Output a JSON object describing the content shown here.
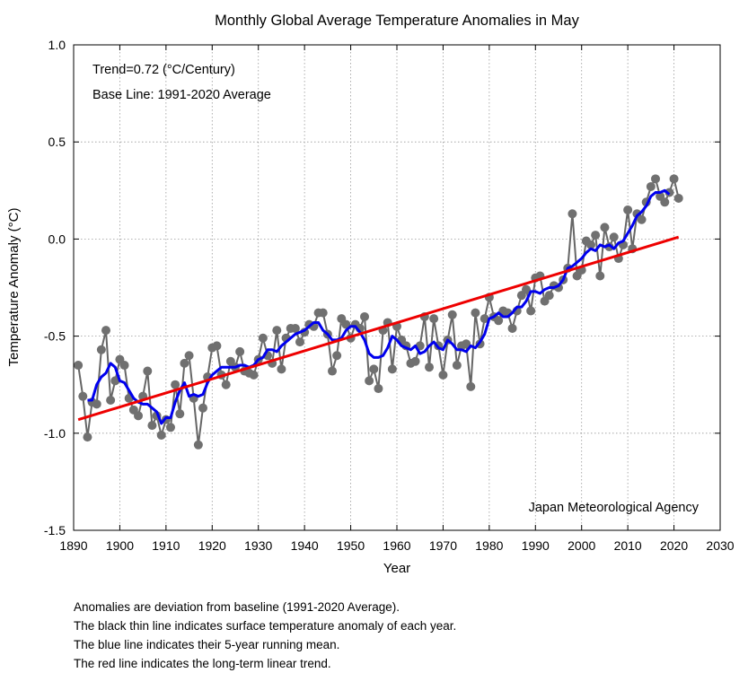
{
  "chart_data": {
    "type": "line",
    "title": "Monthly Global Average Temperature Anomalies in May",
    "xlabel": "Year",
    "ylabel": "Temperature Anomaly (°C)",
    "xlim": [
      1890,
      2030
    ],
    "ylim": [
      -1.5,
      1.0
    ],
    "xticks": [
      "1890",
      "1900",
      "1910",
      "1920",
      "1930",
      "1940",
      "1950",
      "1960",
      "1970",
      "1980",
      "1990",
      "2000",
      "2010",
      "2020",
      "2030"
    ],
    "yticks": [
      "-1.5",
      "-1.0",
      "-0.5",
      "0.0",
      "0.5",
      "1.0"
    ],
    "annotations": {
      "trend": "Trend=0.72 (°C/Century)",
      "baseline": "Base Line: 1991-2020 Average",
      "source": "Japan Meteorological Agency"
    },
    "grid": true,
    "colors": {
      "annual": "#666666",
      "marker": "#707070",
      "running": "#0000ee",
      "trend": "#ee0000",
      "grid": "#999999"
    },
    "series": [
      {
        "name": "annual",
        "x": [
          1891,
          1892,
          1893,
          1894,
          1895,
          1896,
          1897,
          1898,
          1899,
          1900,
          1901,
          1902,
          1903,
          1904,
          1905,
          1906,
          1907,
          1908,
          1909,
          1910,
          1911,
          1912,
          1913,
          1914,
          1915,
          1916,
          1917,
          1918,
          1919,
          1920,
          1921,
          1922,
          1923,
          1924,
          1925,
          1926,
          1927,
          1928,
          1929,
          1930,
          1931,
          1932,
          1933,
          1934,
          1935,
          1936,
          1937,
          1938,
          1939,
          1940,
          1941,
          1942,
          1943,
          1944,
          1945,
          1946,
          1947,
          1948,
          1949,
          1950,
          1951,
          1952,
          1953,
          1954,
          1955,
          1956,
          1957,
          1958,
          1959,
          1960,
          1961,
          1962,
          1963,
          1964,
          1965,
          1966,
          1967,
          1968,
          1969,
          1970,
          1971,
          1972,
          1973,
          1974,
          1975,
          1976,
          1977,
          1978,
          1979,
          1980,
          1981,
          1982,
          1983,
          1984,
          1985,
          1986,
          1987,
          1988,
          1989,
          1990,
          1991,
          1992,
          1993,
          1994,
          1995,
          1996,
          1997,
          1998,
          1999,
          2000,
          2001,
          2002,
          2003,
          2004,
          2005,
          2006,
          2007,
          2008,
          2009,
          2010,
          2011,
          2012,
          2013,
          2014,
          2015,
          2016,
          2017,
          2018,
          2019,
          2020,
          2021
        ],
        "values": [
          -0.65,
          -0.81,
          -1.02,
          -0.84,
          -0.85,
          -0.57,
          -0.47,
          -0.83,
          -0.73,
          -0.62,
          -0.65,
          -0.82,
          -0.88,
          -0.91,
          -0.81,
          -0.68,
          -0.96,
          -0.91,
          -1.01,
          -0.93,
          -0.97,
          -0.75,
          -0.9,
          -0.64,
          -0.6,
          -0.82,
          -1.06,
          -0.87,
          -0.71,
          -0.56,
          -0.55,
          -0.7,
          -0.75,
          -0.63,
          -0.66,
          -0.58,
          -0.68,
          -0.69,
          -0.7,
          -0.62,
          -0.51,
          -0.6,
          -0.64,
          -0.47,
          -0.67,
          -0.51,
          -0.46,
          -0.46,
          -0.53,
          -0.48,
          -0.44,
          -0.45,
          -0.38,
          -0.38,
          -0.49,
          -0.68,
          -0.6,
          -0.41,
          -0.44,
          -0.51,
          -0.44,
          -0.46,
          -0.4,
          -0.73,
          -0.67,
          -0.77,
          -0.47,
          -0.43,
          -0.67,
          -0.45,
          -0.52,
          -0.55,
          -0.64,
          -0.63,
          -0.55,
          -0.4,
          -0.66,
          -0.41,
          -0.55,
          -0.7,
          -0.52,
          -0.39,
          -0.65,
          -0.55,
          -0.54,
          -0.76,
          -0.38,
          -0.54,
          -0.41,
          -0.3,
          -0.4,
          -0.42,
          -0.37,
          -0.38,
          -0.46,
          -0.37,
          -0.29,
          -0.26,
          -0.37,
          -0.2,
          -0.19,
          -0.32,
          -0.29,
          -0.24,
          -0.25,
          -0.21,
          -0.15,
          0.13,
          -0.19,
          -0.16,
          -0.01,
          -0.03,
          0.02,
          -0.19,
          0.06,
          -0.04,
          0.01,
          -0.1,
          -0.03,
          0.15,
          -0.05,
          0.13,
          0.1,
          0.19,
          0.27,
          0.31,
          0.22,
          0.19,
          0.24,
          0.31,
          0.21
        ]
      },
      {
        "name": "running",
        "x": [
          1893,
          1894,
          1895,
          1896,
          1897,
          1898,
          1899,
          1900,
          1901,
          1902,
          1903,
          1904,
          1905,
          1906,
          1907,
          1908,
          1909,
          1910,
          1911,
          1912,
          1913,
          1914,
          1915,
          1916,
          1917,
          1918,
          1919,
          1920,
          1921,
          1922,
          1923,
          1924,
          1925,
          1926,
          1927,
          1928,
          1929,
          1930,
          1931,
          1932,
          1933,
          1934,
          1935,
          1936,
          1937,
          1938,
          1939,
          1940,
          1941,
          1942,
          1943,
          1944,
          1945,
          1946,
          1947,
          1948,
          1949,
          1950,
          1951,
          1952,
          1953,
          1954,
          1955,
          1956,
          1957,
          1958,
          1959,
          1960,
          1961,
          1962,
          1963,
          1964,
          1965,
          1966,
          1967,
          1968,
          1969,
          1970,
          1971,
          1972,
          1973,
          1974,
          1975,
          1976,
          1977,
          1978,
          1979,
          1980,
          1981,
          1982,
          1983,
          1984,
          1985,
          1986,
          1987,
          1988,
          1989,
          1990,
          1991,
          1992,
          1993,
          1994,
          1995,
          1996,
          1997,
          1998,
          1999,
          2000,
          2001,
          2002,
          2003,
          2004,
          2005,
          2006,
          2007,
          2008,
          2009,
          2010,
          2011,
          2012,
          2013,
          2014,
          2015,
          2016,
          2017,
          2018,
          2019
        ],
        "values": [
          -0.83,
          -0.83,
          -0.75,
          -0.71,
          -0.69,
          -0.64,
          -0.66,
          -0.73,
          -0.74,
          -0.78,
          -0.82,
          -0.84,
          -0.85,
          -0.85,
          -0.87,
          -0.89,
          -0.95,
          -0.92,
          -0.92,
          -0.84,
          -0.78,
          -0.74,
          -0.81,
          -0.8,
          -0.81,
          -0.8,
          -0.74,
          -0.7,
          -0.68,
          -0.66,
          -0.66,
          -0.66,
          -0.66,
          -0.65,
          -0.65,
          -0.66,
          -0.65,
          -0.62,
          -0.61,
          -0.57,
          -0.57,
          -0.58,
          -0.55,
          -0.53,
          -0.51,
          -0.49,
          -0.48,
          -0.47,
          -0.45,
          -0.43,
          -0.43,
          -0.47,
          -0.49,
          -0.52,
          -0.52,
          -0.51,
          -0.47,
          -0.45,
          -0.45,
          -0.48,
          -0.52,
          -0.59,
          -0.61,
          -0.61,
          -0.6,
          -0.56,
          -0.5,
          -0.52,
          -0.55,
          -0.56,
          -0.57,
          -0.55,
          -0.59,
          -0.58,
          -0.55,
          -0.53,
          -0.56,
          -0.57,
          -0.52,
          -0.54,
          -0.57,
          -0.57,
          -0.58,
          -0.55,
          -0.56,
          -0.53,
          -0.49,
          -0.41,
          -0.4,
          -0.38,
          -0.4,
          -0.4,
          -0.38,
          -0.35,
          -0.35,
          -0.32,
          -0.27,
          -0.27,
          -0.28,
          -0.26,
          -0.25,
          -0.25,
          -0.24,
          -0.21,
          -0.15,
          -0.14,
          -0.12,
          -0.1,
          -0.07,
          -0.05,
          -0.06,
          -0.03,
          -0.04,
          -0.03,
          -0.05,
          -0.02,
          -0.01,
          0.03,
          0.07,
          0.12,
          0.14,
          0.17,
          0.22,
          0.24,
          0.24,
          0.25,
          0.23
        ]
      },
      {
        "name": "trend",
        "x": [
          1891,
          2021
        ],
        "values": [
          -0.93,
          0.01
        ]
      }
    ]
  },
  "notes": [
    "Anomalies are deviation from baseline (1991-2020 Average).",
    "The black thin line indicates surface temperature anomaly of each year.",
    "The blue line indicates their 5-year running mean.",
    "The red line indicates the long-term linear trend."
  ]
}
